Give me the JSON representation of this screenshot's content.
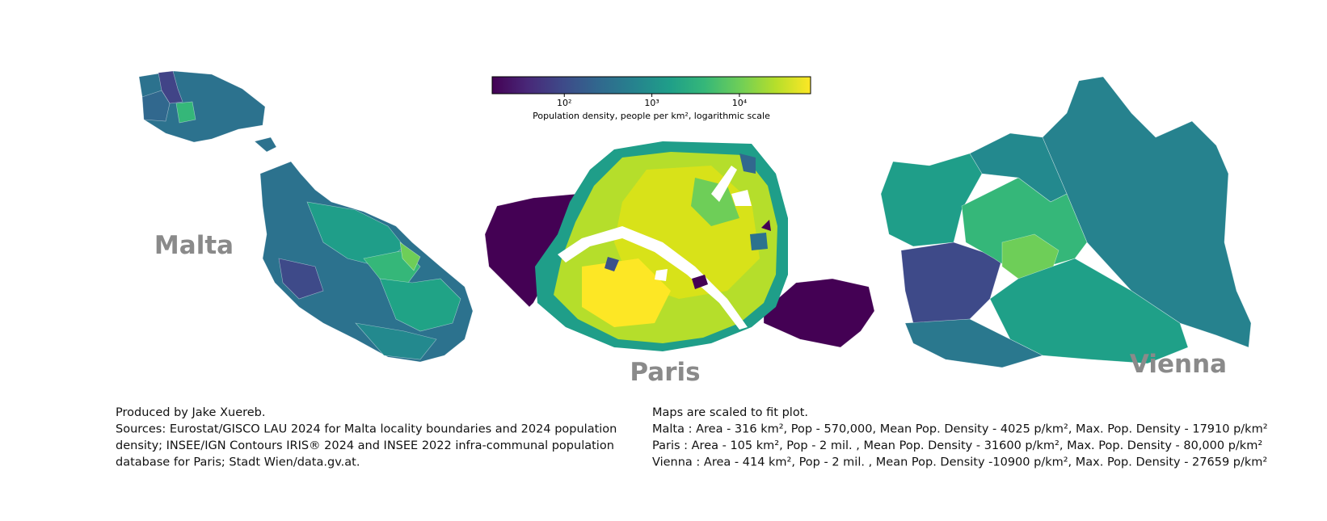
{
  "colorbar": {
    "label": "Population density, people per km², logarithmic scale",
    "log_scale": true,
    "lim": [
      15,
      65000
    ],
    "ticks": [
      {
        "value": 100,
        "label": "10²"
      },
      {
        "value": 1000,
        "label": "10³"
      },
      {
        "value": 10000,
        "label": "10⁴"
      }
    ],
    "colors": [
      "#440154",
      "#482878",
      "#3e4a89",
      "#31688e",
      "#26828e",
      "#1f9e89",
      "#35b779",
      "#6ece58",
      "#b5de2b",
      "#fde725"
    ]
  },
  "maps": [
    {
      "label": "Malta"
    },
    {
      "label": "Paris"
    },
    {
      "label": "Vienna"
    }
  ],
  "credits": [
    "Produced by Jake Xuereb.",
    "Sources: Eurostat/GISCO LAU 2024 for Malta locality boundaries and 2024 population",
    "density; INSEE/IGN Contours IRIS® 2024 and INSEE 2022 infra-communal population",
    "database for Paris; Stadt Wien/data.gv.at."
  ],
  "notes": [
    "Maps are scaled to fit plot.",
    "Malta : Area - 316 km², Pop - 570,000, Mean Pop. Density - 4025 p/km², Max. Pop. Density - 17910 p/km²",
    "Paris : Area - 105 km², Pop - 2 mil. , Mean Pop. Density - 31600 p/km², Max. Pop. Density - 80,000 p/km²",
    "Vienna : Area - 414 km², Pop - 2 mil. , Mean Pop. Density -10900 p/km², Max. Pop. Density  - 27659 p/km²"
  ]
}
